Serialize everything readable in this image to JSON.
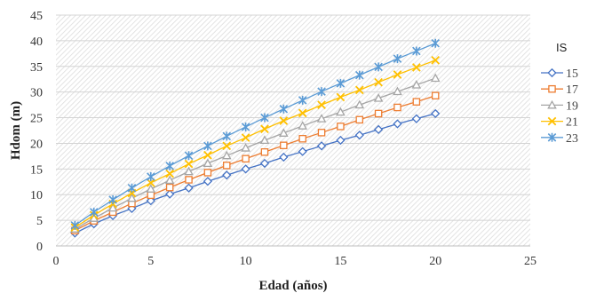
{
  "chart_data": {
    "type": "line",
    "title": "",
    "xlabel": "Edad (años)",
    "ylabel": "Hdom (m)",
    "xlim": [
      0,
      25
    ],
    "ylim": [
      0,
      45
    ],
    "xticks": [
      0,
      5,
      10,
      15,
      20,
      25
    ],
    "yticks": [
      0,
      5,
      10,
      15,
      20,
      25,
      30,
      35,
      40,
      45
    ],
    "grid": "horizontal, hatched plot background",
    "legend": {
      "title": "IS",
      "placement": "right"
    },
    "x": [
      1,
      2,
      3,
      4,
      5,
      6,
      7,
      8,
      9,
      10,
      11,
      12,
      13,
      14,
      15,
      16,
      17,
      18,
      19,
      20
    ],
    "series": [
      {
        "name": "15",
        "marker": "diamond",
        "color": "#4472C4",
        "values": [
          2.5,
          4.3,
          5.9,
          7.3,
          8.8,
          10.1,
          11.3,
          12.6,
          13.8,
          15.0,
          16.1,
          17.3,
          18.4,
          19.5,
          20.6,
          21.6,
          22.7,
          23.8,
          24.8,
          25.8
        ]
      },
      {
        "name": "17",
        "marker": "square",
        "color": "#ED7D31",
        "values": [
          3.0,
          4.9,
          6.6,
          8.3,
          9.9,
          11.4,
          12.9,
          14.3,
          15.7,
          17.0,
          18.3,
          19.6,
          20.9,
          22.1,
          23.3,
          24.6,
          25.8,
          27.0,
          28.1,
          29.3
        ]
      },
      {
        "name": "19",
        "marker": "triangle",
        "color": "#A5A5A5",
        "values": [
          3.3,
          5.4,
          7.4,
          9.3,
          11.1,
          12.8,
          14.5,
          16.1,
          17.6,
          19.1,
          20.6,
          22.0,
          23.4,
          24.8,
          26.1,
          27.5,
          28.8,
          30.1,
          31.4,
          32.7
        ]
      },
      {
        "name": "21",
        "marker": "x",
        "color": "#FFC000",
        "values": [
          3.6,
          6.0,
          8.2,
          10.3,
          12.3,
          14.1,
          16.0,
          17.7,
          19.5,
          21.1,
          22.8,
          24.4,
          25.9,
          27.5,
          29.0,
          30.4,
          31.9,
          33.4,
          34.8,
          36.2
        ]
      },
      {
        "name": "23",
        "marker": "star",
        "color": "#5B9BD5",
        "values": [
          4.0,
          6.6,
          9.0,
          11.3,
          13.5,
          15.6,
          17.6,
          19.5,
          21.4,
          23.2,
          25.0,
          26.7,
          28.4,
          30.1,
          31.7,
          33.3,
          34.9,
          36.5,
          38.0,
          39.5
        ]
      }
    ]
  }
}
